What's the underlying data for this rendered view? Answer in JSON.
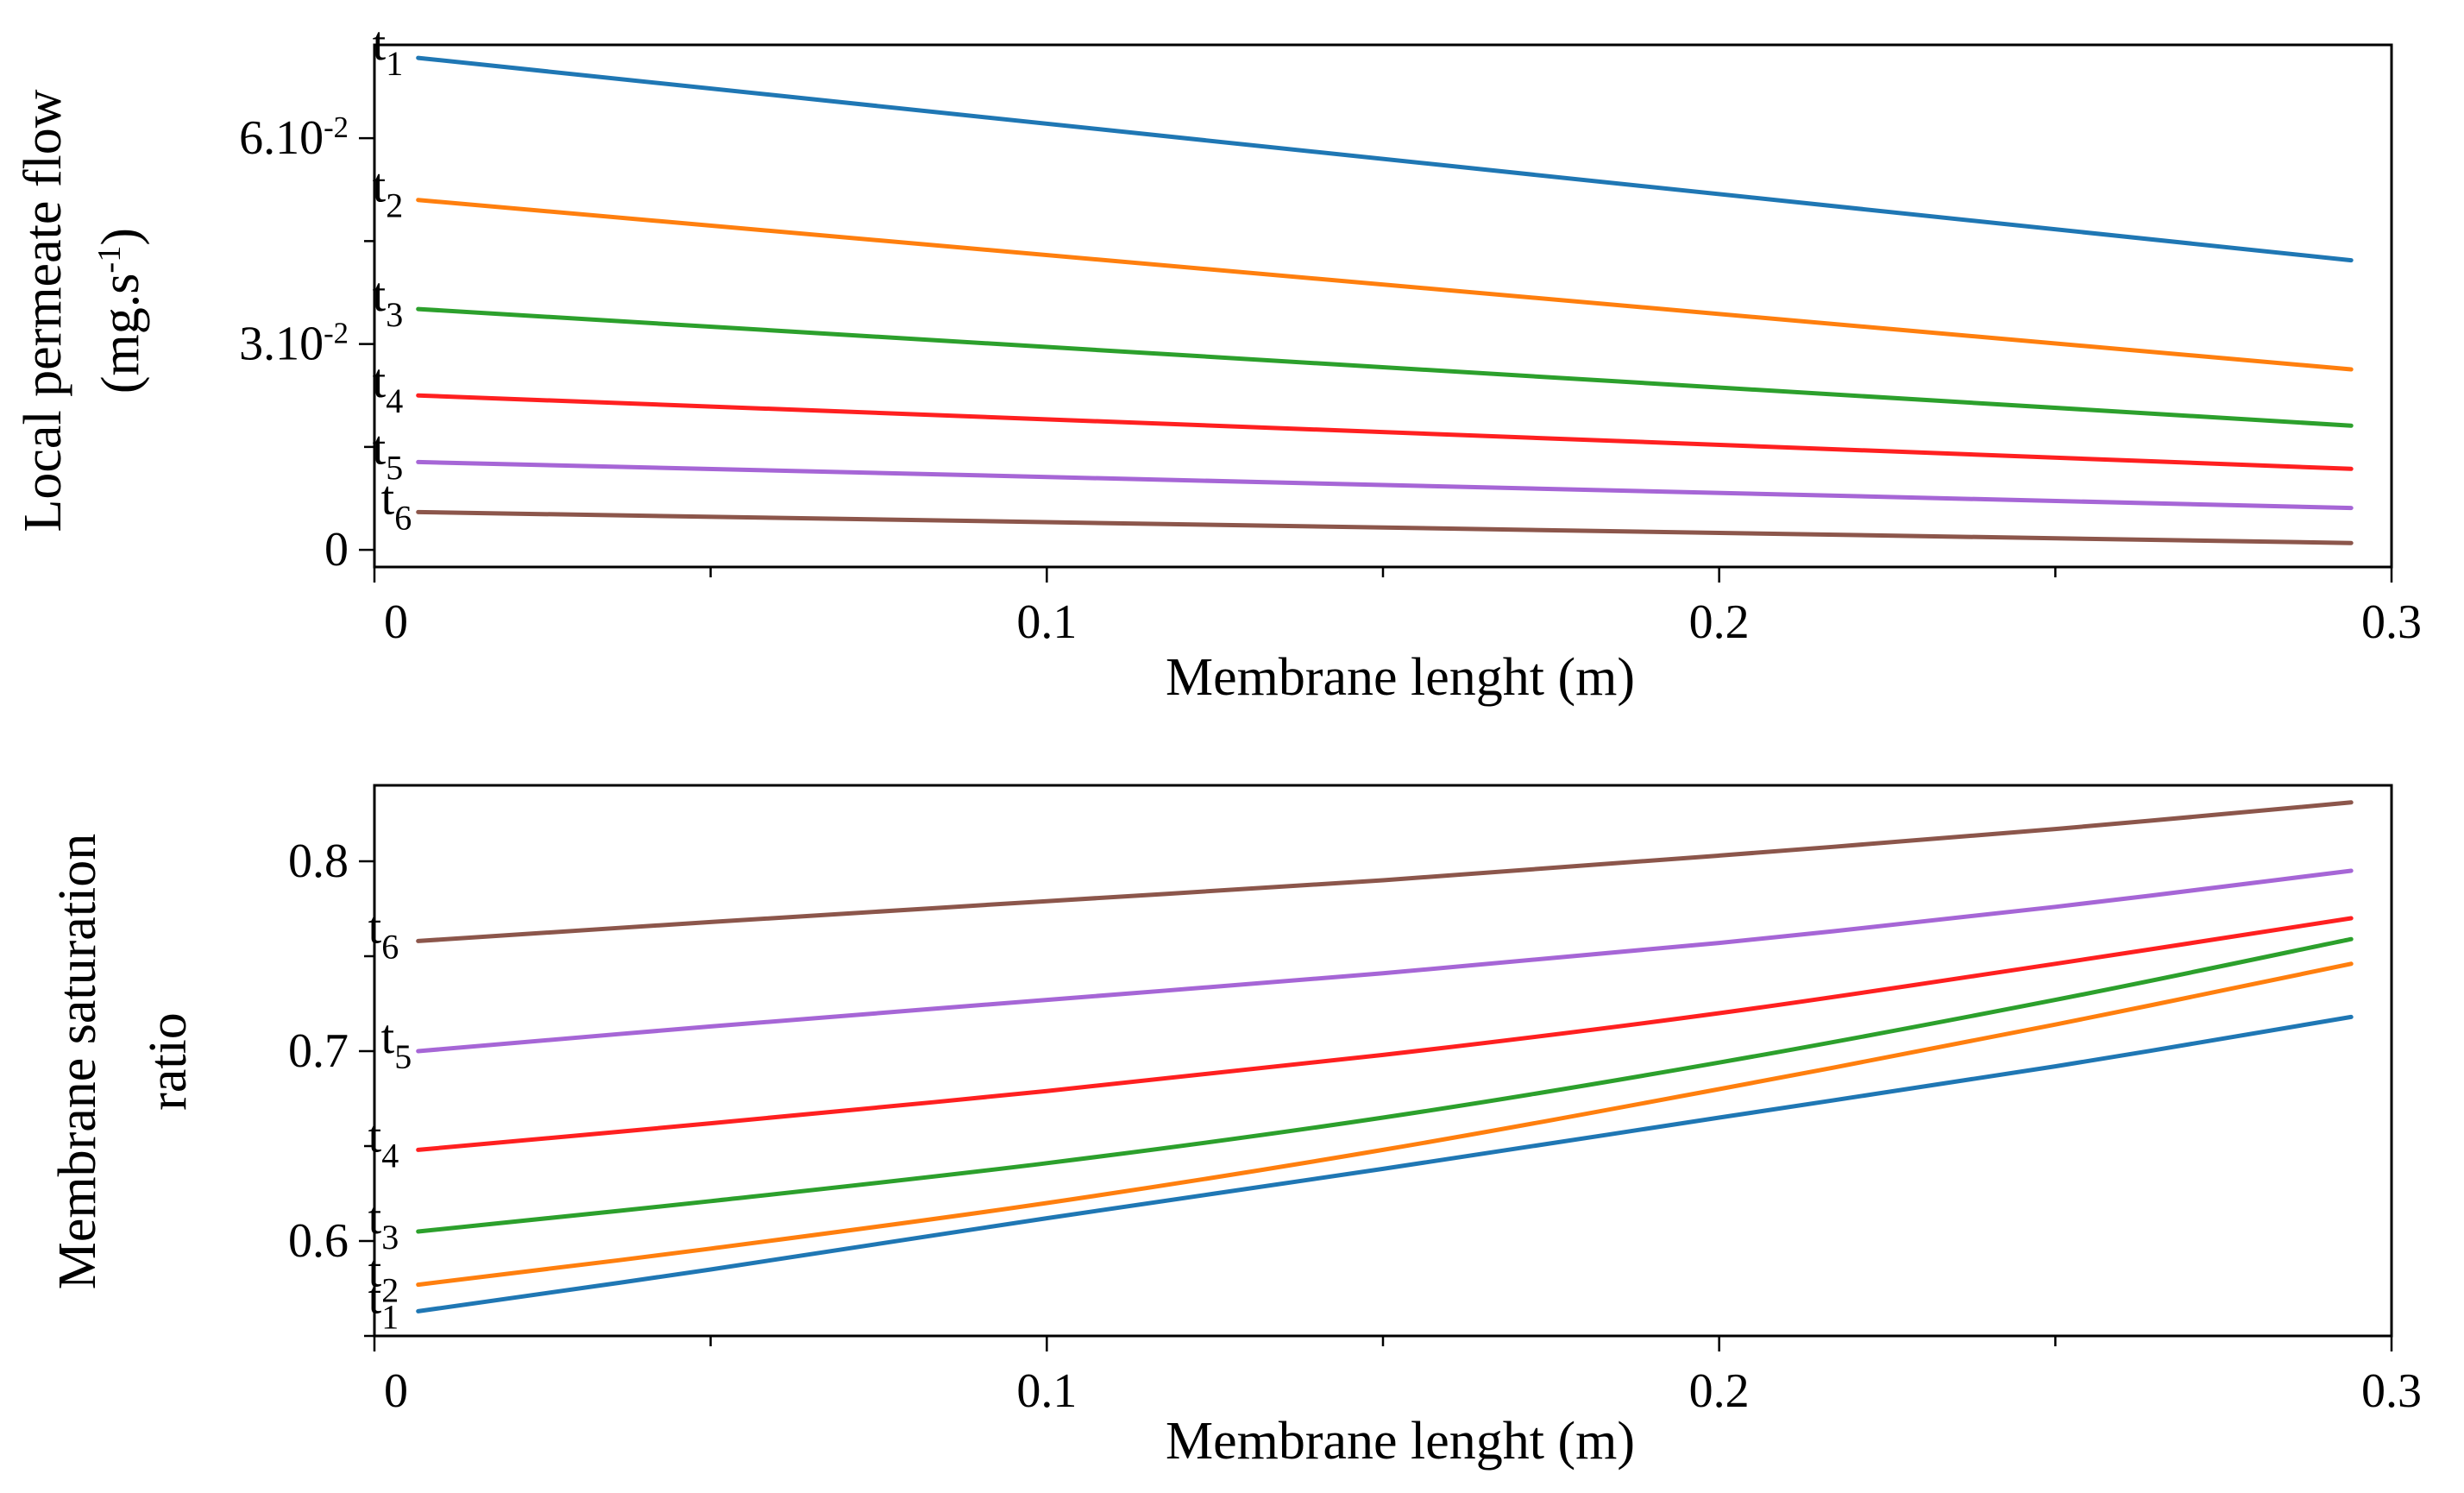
{
  "chart_data": [
    {
      "type": "line",
      "xlabel": "Membrane lenght (m)",
      "ylabel": [
        "Local permeate flow",
        "(mg.s⁻¹)"
      ],
      "xlim": [
        0,
        0.3
      ],
      "ylim": [
        -0.0025,
        0.0736
      ],
      "xticks": [
        {
          "value": 0,
          "label": "0"
        },
        {
          "value": 0.1,
          "label": "0.1"
        },
        {
          "value": 0.2,
          "label": "0.2"
        },
        {
          "value": 0.3,
          "label": "0.3"
        }
      ],
      "x_minor_ticks": [
        0.05,
        0.15,
        0.25
      ],
      "yticks": [
        {
          "value": 0,
          "label": "0"
        },
        {
          "value": 0.03,
          "label": "3.10⁻²"
        },
        {
          "value": 0.06,
          "label": "6.10⁻²"
        }
      ],
      "y_minor_ticks": [
        0.015,
        0.045
      ],
      "grid": false,
      "series": [
        {
          "name": "t1",
          "color": "#1f77b4",
          "x": [
            0.0065,
            0.294
          ],
          "y": [
            0.0717,
            0.0422
          ]
        },
        {
          "name": "t2",
          "color": "#ff7f0e",
          "x": [
            0.0065,
            0.294
          ],
          "y": [
            0.051,
            0.0263
          ]
        },
        {
          "name": "t3",
          "color": "#2ca02c",
          "x": [
            0.0065,
            0.294
          ],
          "y": [
            0.0351,
            0.0181
          ]
        },
        {
          "name": "t4",
          "color": "#ff2020",
          "x": [
            0.0065,
            0.294
          ],
          "y": [
            0.0225,
            0.0118
          ]
        },
        {
          "name": "t5",
          "color": "#a666d6",
          "x": [
            0.0065,
            0.294
          ],
          "y": [
            0.0128,
            0.0061
          ]
        },
        {
          "name": "t6",
          "color": "#8c564b",
          "x": [
            0.0065,
            0.294
          ],
          "y": [
            0.0055,
            0.001
          ]
        }
      ]
    },
    {
      "type": "line",
      "xlabel": "Membrane lenght (m)",
      "ylabel": [
        "Membrane saturation",
        "ratio"
      ],
      "xlim": [
        0,
        0.3
      ],
      "ylim": [
        0.55,
        0.84
      ],
      "xticks": [
        {
          "value": 0,
          "label": "0"
        },
        {
          "value": 0.1,
          "label": "0.1"
        },
        {
          "value": 0.2,
          "label": "0.2"
        },
        {
          "value": 0.3,
          "label": "0.3"
        }
      ],
      "x_minor_ticks": [
        0.05,
        0.15,
        0.25
      ],
      "yticks": [
        {
          "value": 0.6,
          "label": "0.6"
        },
        {
          "value": 0.7,
          "label": "0.7"
        },
        {
          "value": 0.8,
          "label": "0.8"
        }
      ],
      "y_minor_ticks": [
        0.55,
        0.65,
        0.75
      ],
      "grid": false,
      "series": [
        {
          "name": "t1",
          "color": "#1f77b4",
          "x": [
            0.0065,
            0.05,
            0.1,
            0.15,
            0.2,
            0.25,
            0.294
          ],
          "y": [
            0.563,
            0.585,
            0.612,
            0.638,
            0.665,
            0.692,
            0.718
          ]
        },
        {
          "name": "t2",
          "color": "#ff7f0e",
          "x": [
            0.0065,
            0.05,
            0.1,
            0.15,
            0.2,
            0.25,
            0.294
          ],
          "y": [
            0.577,
            0.596,
            0.62,
            0.648,
            0.68,
            0.714,
            0.746
          ]
        },
        {
          "name": "t3",
          "color": "#2ca02c",
          "x": [
            0.0065,
            0.05,
            0.1,
            0.15,
            0.2,
            0.25,
            0.294
          ],
          "y": [
            0.605,
            0.621,
            0.641,
            0.665,
            0.694,
            0.727,
            0.759
          ]
        },
        {
          "name": "t4",
          "color": "#ff2020",
          "x": [
            0.0065,
            0.05,
            0.1,
            0.15,
            0.2,
            0.25,
            0.294
          ],
          "y": [
            0.648,
            0.662,
            0.679,
            0.698,
            0.72,
            0.746,
            0.77
          ]
        },
        {
          "name": "t5",
          "color": "#a666d6",
          "x": [
            0.0065,
            0.05,
            0.1,
            0.15,
            0.2,
            0.25,
            0.294
          ],
          "y": [
            0.7,
            0.713,
            0.727,
            0.741,
            0.757,
            0.776,
            0.795
          ]
        },
        {
          "name": "t6",
          "color": "#8c564b",
          "x": [
            0.0065,
            0.05,
            0.1,
            0.15,
            0.2,
            0.25,
            0.294
          ],
          "y": [
            0.758,
            0.768,
            0.779,
            0.79,
            0.803,
            0.817,
            0.831
          ]
        }
      ]
    }
  ]
}
